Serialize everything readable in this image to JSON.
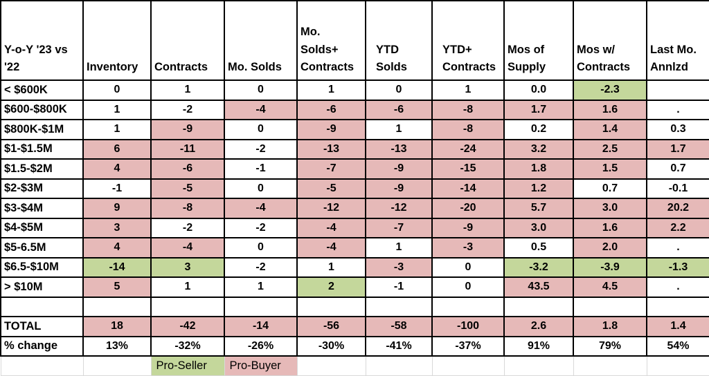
{
  "colors": {
    "pro_buyer_fill": "#e6b9b8",
    "pro_seller_fill": "#c4d79b",
    "grid_black": "#000000",
    "grid_light": "#d9d9d9",
    "text": "#000000",
    "fill_codes": {
      "w": "",
      "p": "#e6b9b8",
      "g": "#c4d79b"
    }
  },
  "table": {
    "corner_header": "Y-o-Y '23 vs\n'22",
    "columns": [
      "Inventory",
      "Contracts",
      "Mo. Solds",
      "Mo.\nSolds+\nContracts",
      "YTD\nSolds",
      "YTD+\nContracts",
      "Mos of\nSupply",
      "Mos w/\nContracts",
      "Last Mo.\nAnnlzd"
    ],
    "rows": [
      {
        "label": "< $600K",
        "values": [
          "0",
          "1",
          "0",
          "1",
          "0",
          "1",
          "0.0",
          "-2.3",
          ""
        ],
        "fills": [
          "w",
          "w",
          "w",
          "w",
          "w",
          "w",
          "w",
          "g",
          "w"
        ]
      },
      {
        "label": "$600-$800K",
        "values": [
          "1",
          "-2",
          "-4",
          "-6",
          "-6",
          "-8",
          "1.7",
          "1.6",
          "."
        ],
        "fills": [
          "w",
          "w",
          "p",
          "p",
          "p",
          "p",
          "p",
          "p",
          "w"
        ]
      },
      {
        "label": "$800K-$1M",
        "values": [
          "1",
          "-9",
          "0",
          "-9",
          "1",
          "-8",
          "0.2",
          "1.4",
          "0.3"
        ],
        "fills": [
          "w",
          "p",
          "w",
          "p",
          "w",
          "p",
          "w",
          "p",
          "w"
        ]
      },
      {
        "label": "$1-$1.5M",
        "values": [
          "6",
          "-11",
          "-2",
          "-13",
          "-13",
          "-24",
          "3.2",
          "2.5",
          "1.7"
        ],
        "fills": [
          "p",
          "p",
          "w",
          "p",
          "p",
          "p",
          "p",
          "p",
          "p"
        ]
      },
      {
        "label": "$1.5-$2M",
        "values": [
          "4",
          "-6",
          "-1",
          "-7",
          "-9",
          "-15",
          "1.8",
          "1.5",
          "0.7"
        ],
        "fills": [
          "p",
          "p",
          "w",
          "p",
          "p",
          "p",
          "p",
          "p",
          "w"
        ]
      },
      {
        "label": "$2-$3M",
        "values": [
          "-1",
          "-5",
          "0",
          "-5",
          "-9",
          "-14",
          "1.2",
          "0.7",
          "-0.1"
        ],
        "fills": [
          "w",
          "p",
          "w",
          "p",
          "p",
          "p",
          "p",
          "w",
          "w"
        ]
      },
      {
        "label": "$3-$4M",
        "values": [
          "9",
          "-8",
          "-4",
          "-12",
          "-12",
          "-20",
          "5.7",
          "3.0",
          "20.2"
        ],
        "fills": [
          "p",
          "p",
          "p",
          "p",
          "p",
          "p",
          "p",
          "p",
          "p"
        ]
      },
      {
        "label": "$4-$5M",
        "values": [
          "3",
          "-2",
          "-2",
          "-4",
          "-7",
          "-9",
          "3.0",
          "1.6",
          "2.2"
        ],
        "fills": [
          "p",
          "w",
          "w",
          "p",
          "p",
          "p",
          "p",
          "p",
          "p"
        ]
      },
      {
        "label": "$5-6.5M",
        "values": [
          "4",
          "-4",
          "0",
          "-4",
          "1",
          "-3",
          "0.5",
          "2.0",
          "."
        ],
        "fills": [
          "p",
          "p",
          "w",
          "p",
          "w",
          "p",
          "w",
          "p",
          "w"
        ]
      },
      {
        "label": "$6.5-$10M",
        "values": [
          "-14",
          "3",
          "-2",
          "1",
          "-3",
          "0",
          "-3.2",
          "-3.9",
          "-1.3"
        ],
        "fills": [
          "g",
          "g",
          "w",
          "w",
          "p",
          "w",
          "g",
          "g",
          "g"
        ]
      },
      {
        "label": "> $10M",
        "values": [
          "5",
          "1",
          "1",
          "2",
          "-1",
          "0",
          "43.5",
          "4.5",
          "."
        ],
        "fills": [
          "p",
          "w",
          "w",
          "g",
          "w",
          "w",
          "p",
          "p",
          "w"
        ]
      },
      {
        "label": "",
        "values": [
          "",
          "",
          "",
          "",
          "",
          "",
          "",
          "",
          ""
        ],
        "fills": [
          "w",
          "w",
          "w",
          "w",
          "w",
          "w",
          "w",
          "w",
          "w"
        ]
      },
      {
        "label": "TOTAL",
        "values": [
          "18",
          "-42",
          "-14",
          "-56",
          "-58",
          "-100",
          "2.6",
          "1.8",
          "1.4"
        ],
        "fills": [
          "p",
          "p",
          "p",
          "p",
          "p",
          "p",
          "p",
          "p",
          "p"
        ]
      },
      {
        "label": "% change",
        "values": [
          "13%",
          "-32%",
          "-26%",
          "-30%",
          "-41%",
          "-37%",
          "91%",
          "79%",
          "54%"
        ],
        "fills": [
          "w",
          "w",
          "w",
          "w",
          "w",
          "w",
          "w",
          "w",
          "w"
        ]
      }
    ],
    "legend_row": {
      "label": "",
      "values": [
        "",
        "Pro-Seller",
        "Pro-Buyer",
        "",
        "",
        "",
        "",
        "",
        ""
      ],
      "fills": [
        "w",
        "g",
        "p",
        "w",
        "w",
        "w",
        "w",
        "w",
        "w"
      ]
    }
  }
}
